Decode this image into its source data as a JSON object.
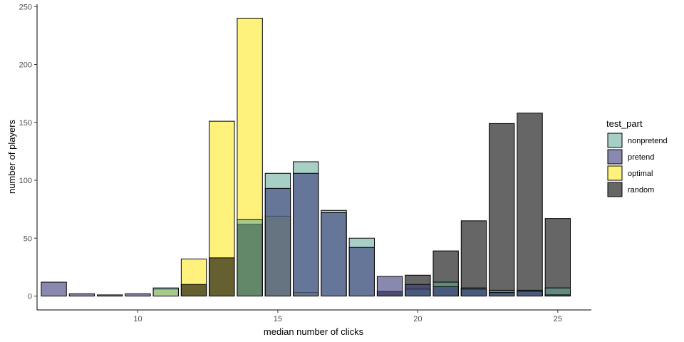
{
  "chart_data": {
    "type": "bar",
    "title": "",
    "xlabel": "median number of clicks",
    "ylabel": "number of players",
    "xlim": [
      6.4,
      26.2
    ],
    "ylim": [
      -12,
      252
    ],
    "xticks": [
      10,
      15,
      20,
      25
    ],
    "yticks": [
      0,
      50,
      100,
      150,
      200,
      250
    ],
    "grid": false,
    "bar_width": 0.9,
    "legend": {
      "title": "test_part",
      "position": "right"
    },
    "series": [
      {
        "name": "optimal",
        "color": "#FDE725",
        "opacity": 0.6,
        "points": [
          {
            "x": 11,
            "y": 6
          },
          {
            "x": 12,
            "y": 32
          },
          {
            "x": 13,
            "y": 151
          },
          {
            "x": 14,
            "y": 240
          },
          {
            "x": 15,
            "y": 69
          },
          {
            "x": 16,
            "y": 3
          }
        ]
      },
      {
        "name": "random",
        "color": "#000000",
        "opacity": 0.6,
        "points": [
          {
            "x": 12,
            "y": 10
          },
          {
            "x": 13,
            "y": 33
          },
          {
            "x": 14,
            "y": 62
          },
          {
            "x": 19,
            "y": 4
          },
          {
            "x": 20,
            "y": 18
          },
          {
            "x": 21,
            "y": 39
          },
          {
            "x": 22,
            "y": 65
          },
          {
            "x": 23,
            "y": 149
          },
          {
            "x": 24,
            "y": 158
          },
          {
            "x": 25,
            "y": 67
          }
        ]
      },
      {
        "name": "nonpretend",
        "color": "#5FA898",
        "opacity": 0.55,
        "points": [
          {
            "x": 11,
            "y": 7
          },
          {
            "x": 14,
            "y": 66
          },
          {
            "x": 15,
            "y": 106
          },
          {
            "x": 16,
            "y": 116
          },
          {
            "x": 17,
            "y": 74
          },
          {
            "x": 18,
            "y": 50
          },
          {
            "x": 20,
            "y": 6
          },
          {
            "x": 21,
            "y": 12
          },
          {
            "x": 22,
            "y": 7
          },
          {
            "x": 23,
            "y": 5
          },
          {
            "x": 24,
            "y": 5
          },
          {
            "x": 25,
            "y": 7
          }
        ]
      },
      {
        "name": "pretend",
        "color": "#3B3B7A",
        "opacity": 0.6,
        "points": [
          {
            "x": 7,
            "y": 12
          },
          {
            "x": 8,
            "y": 2
          },
          {
            "x": 9,
            "y": 1
          },
          {
            "x": 10,
            "y": 2
          },
          {
            "x": 15,
            "y": 93
          },
          {
            "x": 16,
            "y": 106
          },
          {
            "x": 17,
            "y": 72
          },
          {
            "x": 18,
            "y": 42
          },
          {
            "x": 19,
            "y": 17
          },
          {
            "x": 20,
            "y": 10
          },
          {
            "x": 21,
            "y": 8
          },
          {
            "x": 22,
            "y": 6
          },
          {
            "x": 23,
            "y": 3
          },
          {
            "x": 24,
            "y": 4
          },
          {
            "x": 25,
            "y": 1
          }
        ]
      }
    ],
    "legend_order": [
      "nonpretend",
      "pretend",
      "optimal",
      "random"
    ]
  }
}
